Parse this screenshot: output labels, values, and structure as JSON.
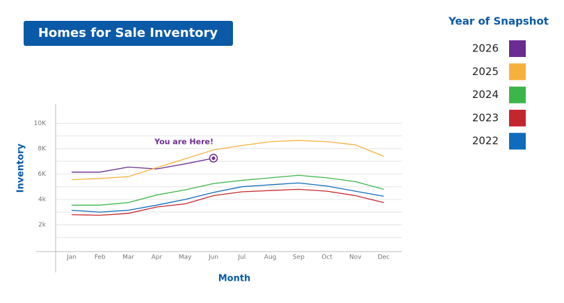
{
  "chart_data": {
    "type": "line",
    "title": "Homes for Sale Inventory",
    "x_label": "Month",
    "y_label": "Inventory",
    "legend_title": "Year of Snapshot",
    "annotation": "You are Here!",
    "categories": [
      "Jan",
      "Feb",
      "Mar",
      "Apr",
      "May",
      "Jun",
      "Jul",
      "Aug",
      "Sep",
      "Oct",
      "Nov",
      "Dec"
    ],
    "ylim": [
      0,
      11500
    ],
    "yticks": [
      {
        "value": 2000,
        "label": "2k"
      },
      {
        "value": 4000,
        "label": "4k"
      },
      {
        "value": 6000,
        "label": "6K"
      },
      {
        "value": 8000,
        "label": "8K"
      },
      {
        "value": 10000,
        "label": "10K"
      }
    ],
    "minor_yticks": [
      1000,
      3000,
      5000,
      7000,
      9000
    ],
    "grid": true,
    "series": [
      {
        "name": "2026",
        "color": "#6a2c91",
        "values": [
          6150,
          6150,
          6550,
          6400,
          6800,
          7250,
          null,
          null,
          null,
          null,
          null,
          null
        ]
      },
      {
        "name": "2025",
        "color": "#f6b13d",
        "values": [
          5550,
          5650,
          5800,
          6500,
          7200,
          7900,
          8250,
          8550,
          8650,
          8550,
          8300,
          7400
        ]
      },
      {
        "name": "2024",
        "color": "#3cb54a",
        "values": [
          3550,
          3550,
          3750,
          4350,
          4750,
          5250,
          5500,
          5700,
          5900,
          5700,
          5400,
          4800
        ]
      },
      {
        "name": "2023",
        "color": "#c4262e",
        "values": [
          2800,
          2750,
          2900,
          3400,
          3650,
          4300,
          4600,
          4700,
          4800,
          4650,
          4300,
          3750
        ]
      },
      {
        "name": "2022",
        "color": "#0f6cbd",
        "values": [
          3150,
          3000,
          3150,
          3550,
          4000,
          4550,
          5000,
          5150,
          5300,
          5050,
          4650,
          4250
        ]
      }
    ]
  }
}
